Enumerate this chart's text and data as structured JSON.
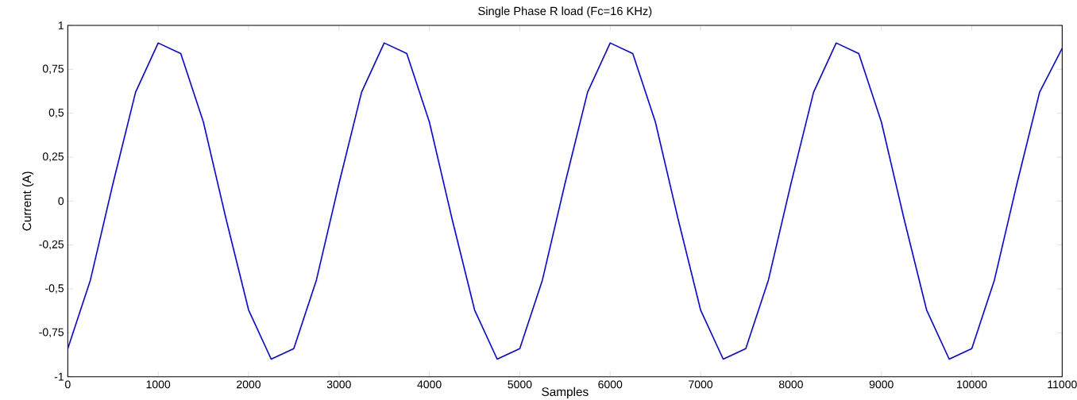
{
  "chart_data": {
    "type": "line",
    "title": "Single Phase R load (Fc=16 KHz)",
    "xlabel": "Samples",
    "ylabel": "Current (A)",
    "x": [
      0,
      250,
      500,
      750,
      1000,
      1250,
      1500,
      1750,
      2000,
      2250,
      2500,
      2750,
      3000,
      3250,
      3500,
      3750,
      4000,
      4250,
      4500,
      4750,
      5000,
      5250,
      5500,
      5750,
      6000,
      6250,
      6500,
      6750,
      7000,
      7250,
      7500,
      7750,
      8000,
      8250,
      8500,
      8750,
      9000,
      9250,
      9500,
      9750,
      10000,
      10250,
      10500,
      10750,
      11000
    ],
    "series": [
      {
        "color": "#0000ff",
        "values": [
          -0.84,
          -0.45,
          0.1,
          0.62,
          0.9,
          0.84,
          0.45,
          -0.1,
          -0.62,
          -0.9,
          -0.84,
          -0.45,
          0.1,
          0.62,
          0.9,
          0.84,
          0.45,
          -0.1,
          -0.62,
          -0.9,
          -0.84,
          -0.45,
          0.1,
          0.62,
          0.9,
          0.84,
          0.45,
          -0.1,
          -0.62,
          -0.9,
          -0.84,
          -0.45,
          0.1,
          0.62,
          0.9,
          0.84,
          0.45,
          -0.1,
          -0.62,
          -0.9,
          -0.84,
          -0.45,
          0.1,
          0.62,
          0.87
        ]
      }
    ],
    "xlim": [
      0,
      11000
    ],
    "ylim": [
      -1,
      1
    ],
    "xticks": [
      0,
      1000,
      2000,
      3000,
      4000,
      5000,
      6000,
      7000,
      8000,
      9000,
      10000,
      11000
    ],
    "yticks": [
      -1,
      {
        "value": -0.75,
        "label": "-0,75"
      },
      {
        "value": -0.5,
        "label": "-0,5"
      },
      {
        "value": -0.25,
        "label": "-0,25"
      },
      0,
      {
        "value": 0.25,
        "label": "0,25"
      },
      {
        "value": 0.5,
        "label": "0,5"
      },
      {
        "value": 0.75,
        "label": "0,75"
      },
      1
    ],
    "grid": false,
    "marker": "none",
    "line_style": "solid"
  }
}
